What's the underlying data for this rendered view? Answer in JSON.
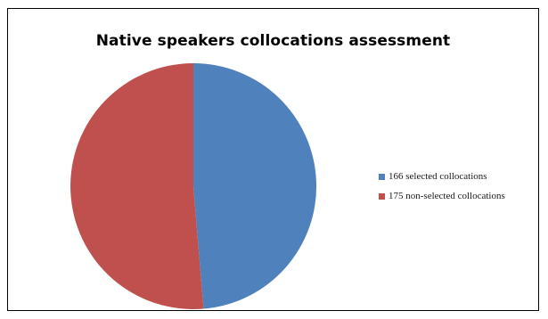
{
  "chart_data": {
    "type": "pie",
    "title": "Native speakers collocations assessment",
    "categories": [
      "166 selected collocations",
      "175 non-selected collocations"
    ],
    "values": [
      166,
      175
    ],
    "colors": [
      "#4F81BD",
      "#C0504D"
    ],
    "start": "12 o'clock",
    "direction": "clockwise",
    "legend_position": "right"
  }
}
